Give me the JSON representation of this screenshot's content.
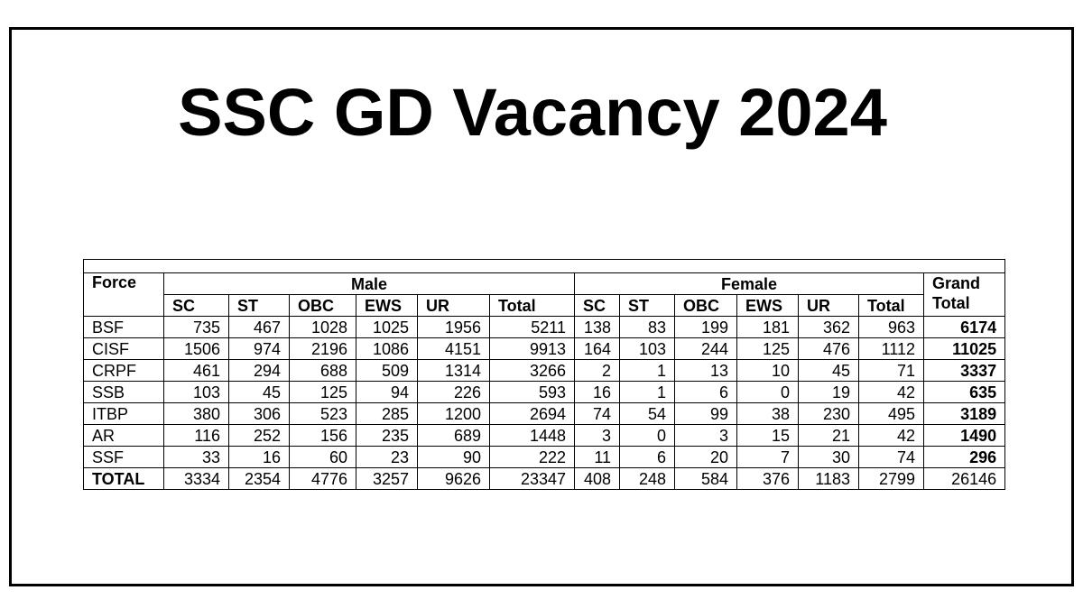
{
  "title": "SSC GD Vacancy 2024",
  "table": {
    "corner": "Force",
    "groups": [
      {
        "name": "Male",
        "columns": [
          "SC",
          "ST",
          "OBC",
          "EWS",
          "UR",
          "Total"
        ]
      },
      {
        "name": "Female",
        "columns": [
          "SC",
          "ST",
          "OBC",
          "EWS",
          "UR",
          "Total"
        ]
      }
    ],
    "grand_total": "Grand Total",
    "rows": [
      [
        "BSF",
        735,
        467,
        1028,
        1025,
        1956,
        5211,
        138,
        83,
        199,
        181,
        362,
        963,
        6174
      ],
      [
        "CISF",
        1506,
        974,
        2196,
        1086,
        4151,
        9913,
        164,
        103,
        244,
        125,
        476,
        1112,
        11025
      ],
      [
        "CRPF",
        461,
        294,
        688,
        509,
        1314,
        3266,
        2,
        1,
        13,
        10,
        45,
        71,
        3337
      ],
      [
        "SSB",
        103,
        45,
        125,
        94,
        226,
        593,
        16,
        1,
        6,
        0,
        19,
        42,
        635
      ],
      [
        "ITBP",
        380,
        306,
        523,
        285,
        1200,
        2694,
        74,
        54,
        99,
        38,
        230,
        495,
        3189
      ],
      [
        "AR",
        116,
        252,
        156,
        235,
        689,
        1448,
        3,
        0,
        3,
        15,
        21,
        42,
        1490
      ],
      [
        "SSF",
        33,
        16,
        60,
        23,
        90,
        222,
        11,
        6,
        20,
        7,
        30,
        74,
        296
      ],
      [
        "TOTAL",
        3334,
        2354,
        4776,
        3257,
        9626,
        23347,
        408,
        248,
        584,
        376,
        1183,
        2799,
        26146
      ]
    ]
  }
}
